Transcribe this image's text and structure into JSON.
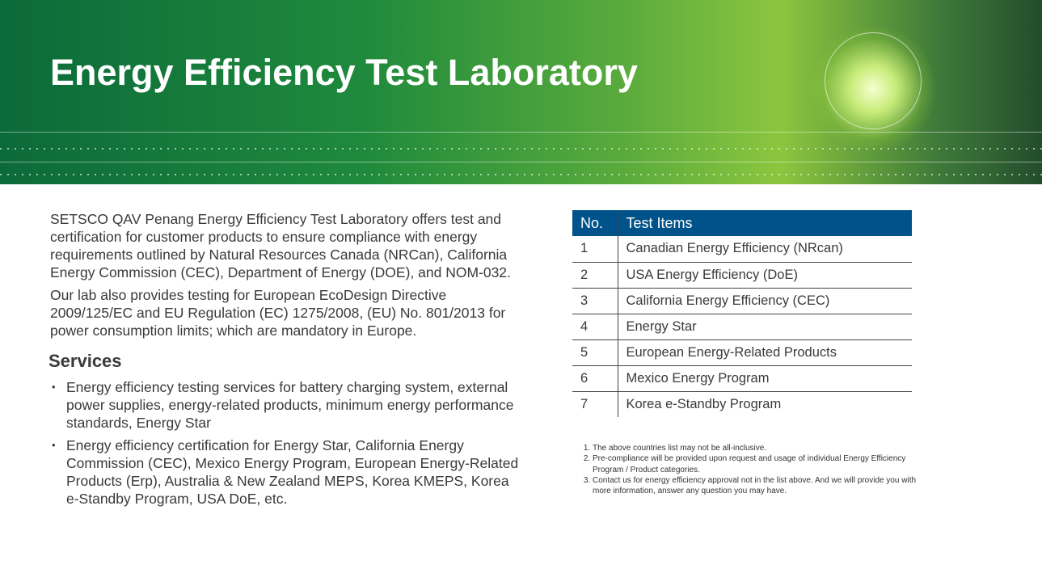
{
  "header": {
    "title": "Energy Efficiency Test Laboratory"
  },
  "intro": {
    "p1": "SETSCO QAV Penang Energy Efficiency Test Laboratory offers test and  certification for customer products to ensure compliance with  energy requirements outlined by Natural Resources Canada  (NRCan), California Energy Commission (CEC), Department of  Energy (DOE), and NOM-032.",
    "p2": "Our lab also provides testing for European EcoDesign Directive 2009/125/EC and EU Regulation (EC) 1275/2008, (EU) No. 801/2013 for power consumption limits; which are mandatory in Europe."
  },
  "services": {
    "heading": "Services",
    "items": [
      "Energy efficiency testing services for battery charging system, external power supplies, energy-related products, minimum energy performance standards, Energy Star",
      "Energy efficiency certification for Energy Star, California Energy Commission (CEC), Mexico Energy Program, European Energy-Related Products (Erp), Australia & New Zealand MEPS, Korea KMEPS, Korea e-Standby Program, USA DoE, etc."
    ]
  },
  "table": {
    "headers": [
      "No.",
      "Test Items"
    ],
    "header_color": "#00538a",
    "rows": [
      [
        "1",
        "Canadian Energy Efficiency (NRcan)"
      ],
      [
        "2",
        "USA Energy Efficiency (DoE)"
      ],
      [
        "3",
        "California Energy Efficiency (CEC)"
      ],
      [
        "4",
        "Energy Star"
      ],
      [
        "5",
        "European Energy-Related Products"
      ],
      [
        "6",
        "Mexico Energy Program"
      ],
      [
        "7",
        "Korea e-Standby Program"
      ]
    ]
  },
  "notes": [
    "The above countries list may not be all-inclusive.",
    "Pre-compliance will be provided upon request and usage of individual Energy Efficiency Program / Product categories.",
    "Contact us for energy efficiency approval not in the list above. And we will provide you with more information, answer any question you may have."
  ]
}
